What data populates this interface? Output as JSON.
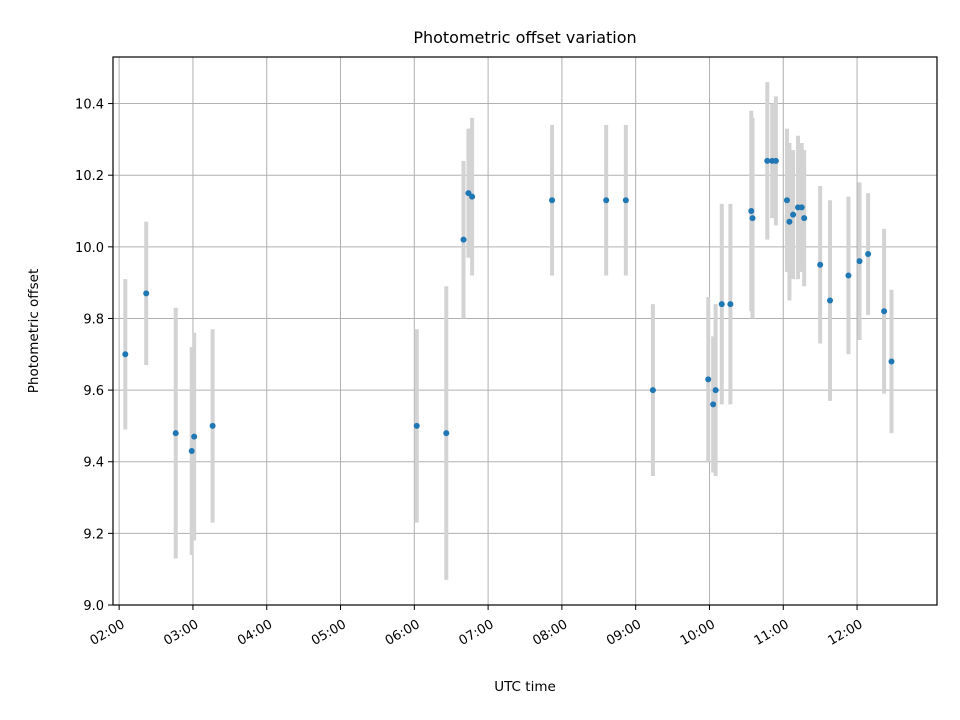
{
  "chart_data": {
    "type": "scatter",
    "title": "Photometric offset variation",
    "xlabel": "UTC time",
    "ylabel": "Photometric offset",
    "xlim": [
      "01:55",
      "13:05"
    ],
    "ylim": [
      9.0,
      10.53
    ],
    "xticks": [
      "02:00",
      "03:00",
      "04:00",
      "05:00",
      "06:00",
      "07:00",
      "08:00",
      "09:00",
      "10:00",
      "11:00",
      "12:00"
    ],
    "yticks": [
      "9.0",
      "9.2",
      "9.4",
      "9.6",
      "9.8",
      "10.0",
      "10.2",
      "10.4"
    ],
    "grid": true,
    "colors": {
      "point": "#1f77b4",
      "errorbar": "#d3d3d3",
      "grid": "#b0b0b0"
    },
    "series": [
      {
        "points": [
          {
            "x": "02:05",
            "y": 9.7,
            "err": 0.21
          },
          {
            "x": "02:22",
            "y": 9.87,
            "err": 0.2
          },
          {
            "x": "02:46",
            "y": 9.48,
            "err": 0.35
          },
          {
            "x": "02:59",
            "y": 9.43,
            "err": 0.29
          },
          {
            "x": "03:01",
            "y": 9.47,
            "err": 0.29
          },
          {
            "x": "03:16",
            "y": 9.5,
            "err": 0.27
          },
          {
            "x": "06:02",
            "y": 9.5,
            "err": 0.27
          },
          {
            "x": "06:26",
            "y": 9.48,
            "err": 0.41
          },
          {
            "x": "06:40",
            "y": 10.02,
            "err": 0.22
          },
          {
            "x": "06:44",
            "y": 10.15,
            "err": 0.18
          },
          {
            "x": "06:47",
            "y": 10.14,
            "err": 0.22
          },
          {
            "x": "07:52",
            "y": 10.13,
            "err": 0.21
          },
          {
            "x": "08:36",
            "y": 10.13,
            "err": 0.21
          },
          {
            "x": "08:52",
            "y": 10.13,
            "err": 0.21
          },
          {
            "x": "09:14",
            "y": 9.6,
            "err": 0.24
          },
          {
            "x": "09:59",
            "y": 9.63,
            "err": 0.23
          },
          {
            "x": "10:03",
            "y": 9.56,
            "err": 0.19
          },
          {
            "x": "10:05",
            "y": 9.6,
            "err": 0.24
          },
          {
            "x": "10:10",
            "y": 9.84,
            "err": 0.28
          },
          {
            "x": "10:17",
            "y": 9.84,
            "err": 0.28
          },
          {
            "x": "10:34",
            "y": 10.1,
            "err": 0.28
          },
          {
            "x": "10:35",
            "y": 10.08,
            "err": 0.28
          },
          {
            "x": "10:47",
            "y": 10.24,
            "err": 0.22
          },
          {
            "x": "10:51",
            "y": 10.24,
            "err": 0.16
          },
          {
            "x": "10:54",
            "y": 10.24,
            "err": 0.18
          },
          {
            "x": "11:03",
            "y": 10.13,
            "err": 0.2
          },
          {
            "x": "11:05",
            "y": 10.07,
            "err": 0.22
          },
          {
            "x": "11:08",
            "y": 10.09,
            "err": 0.18
          },
          {
            "x": "11:12",
            "y": 10.11,
            "err": 0.2
          },
          {
            "x": "11:15",
            "y": 10.11,
            "err": 0.18
          },
          {
            "x": "11:17",
            "y": 10.08,
            "err": 0.19
          },
          {
            "x": "11:30",
            "y": 9.95,
            "err": 0.22
          },
          {
            "x": "11:38",
            "y": 9.85,
            "err": 0.28
          },
          {
            "x": "11:53",
            "y": 9.92,
            "err": 0.22
          },
          {
            "x": "12:02",
            "y": 9.96,
            "err": 0.22
          },
          {
            "x": "12:09",
            "y": 9.98,
            "err": 0.17
          },
          {
            "x": "12:22",
            "y": 9.82,
            "err": 0.23
          },
          {
            "x": "12:28",
            "y": 9.68,
            "err": 0.2
          }
        ]
      }
    ]
  }
}
